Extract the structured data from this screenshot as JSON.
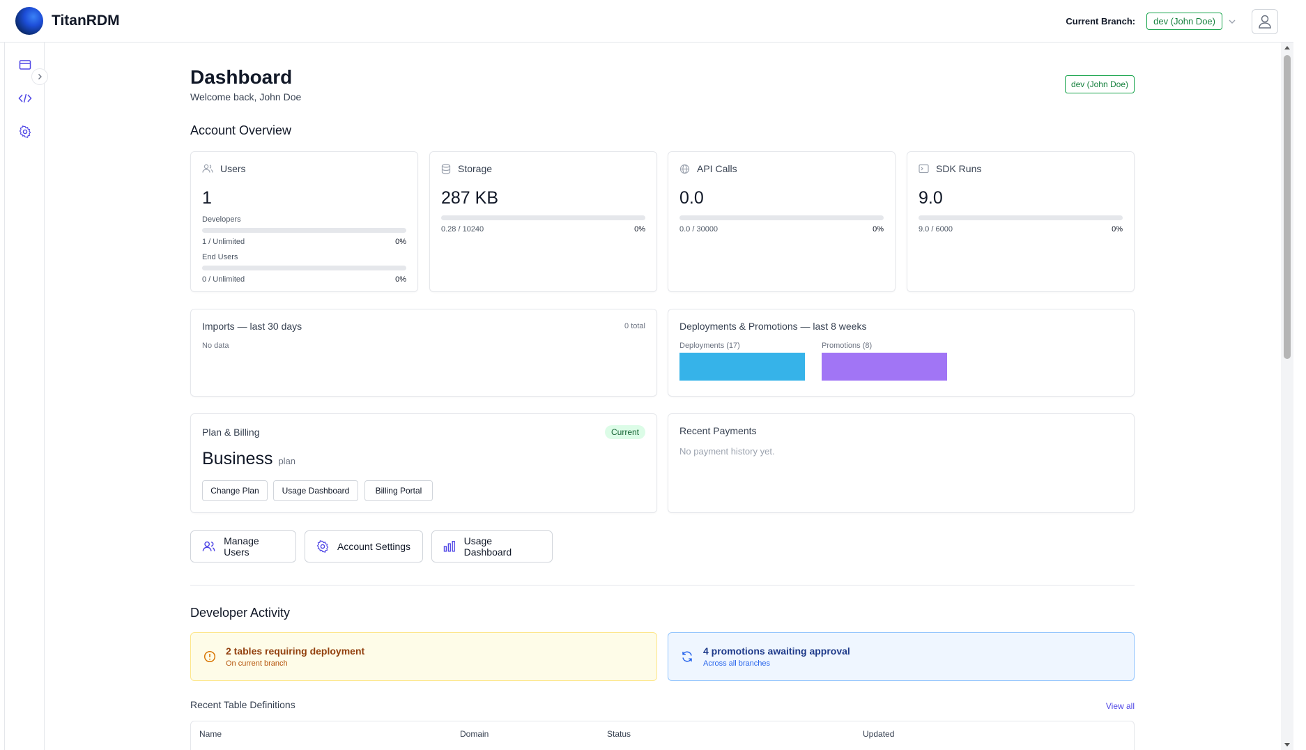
{
  "app": {
    "name": "TitanRDM"
  },
  "header": {
    "branch_label": "Current Branch:",
    "branch_value": "dev (John Doe)"
  },
  "sidebar": {
    "items": [
      {
        "icon": "window-icon"
      },
      {
        "icon": "code-icon"
      },
      {
        "icon": "gear-icon"
      }
    ]
  },
  "page": {
    "title": "Dashboard",
    "welcome": "Welcome back, John Doe",
    "branch_badge": "dev (John Doe)"
  },
  "overview": {
    "title": "Account Overview",
    "users": {
      "label": "Users",
      "value": "1",
      "developers": {
        "label": "Developers",
        "count": "1 / Unlimited",
        "pct": "0%",
        "fill": 0
      },
      "end_users": {
        "label": "End Users",
        "count": "0 / Unlimited",
        "pct": "0%",
        "fill": 0
      }
    },
    "storage": {
      "label": "Storage",
      "value": "287 KB",
      "count": "0.28 / 10240",
      "pct": "0%",
      "fill": 0
    },
    "api": {
      "label": "API Calls",
      "value": "0.0",
      "count": "0.0 / 30000",
      "pct": "0%",
      "fill": 0
    },
    "sdk": {
      "label": "SDK Runs",
      "value": "9.0",
      "count": "9.0 / 6000",
      "pct": "0%",
      "fill": 0
    }
  },
  "imports": {
    "title": "Imports — last 30 days",
    "total": "0 total",
    "empty": "No data"
  },
  "deployments": {
    "title": "Deployments & Promotions — last 8 weeks",
    "chart_data": {
      "type": "bar",
      "categories": [
        "Deployments (17)",
        "Promotions (8)"
      ],
      "values": [
        17,
        8
      ],
      "colors": [
        "#36b3e9",
        "#a175f5"
      ]
    }
  },
  "billing": {
    "title": "Plan & Billing",
    "badge": "Current",
    "plan": "Business",
    "plan_suffix": "plan",
    "buttons": {
      "change": "Change Plan",
      "usage": "Usage Dashboard",
      "portal": "Billing Portal"
    }
  },
  "payments": {
    "title": "Recent Payments",
    "empty": "No payment history yet."
  },
  "actions": {
    "manage_users": "Manage Users",
    "account_settings": "Account Settings",
    "usage_dashboard": "Usage Dashboard"
  },
  "dev_activity": {
    "title": "Developer Activity",
    "alert_warn": {
      "title": "2 tables requiring deployment",
      "sub": "On current branch"
    },
    "alert_info": {
      "title": "4 promotions awaiting approval",
      "sub": "Across all branches"
    }
  },
  "recent_tables": {
    "title": "Recent Table Definitions",
    "view_all": "View all",
    "columns": {
      "name": "Name",
      "domain": "Domain",
      "status": "Status",
      "updated": "Updated"
    }
  },
  "colors": {
    "accent": "#3b82f6",
    "green": "#15803d",
    "warn_bg": "#fefce8",
    "info_bg": "#eff6ff"
  }
}
